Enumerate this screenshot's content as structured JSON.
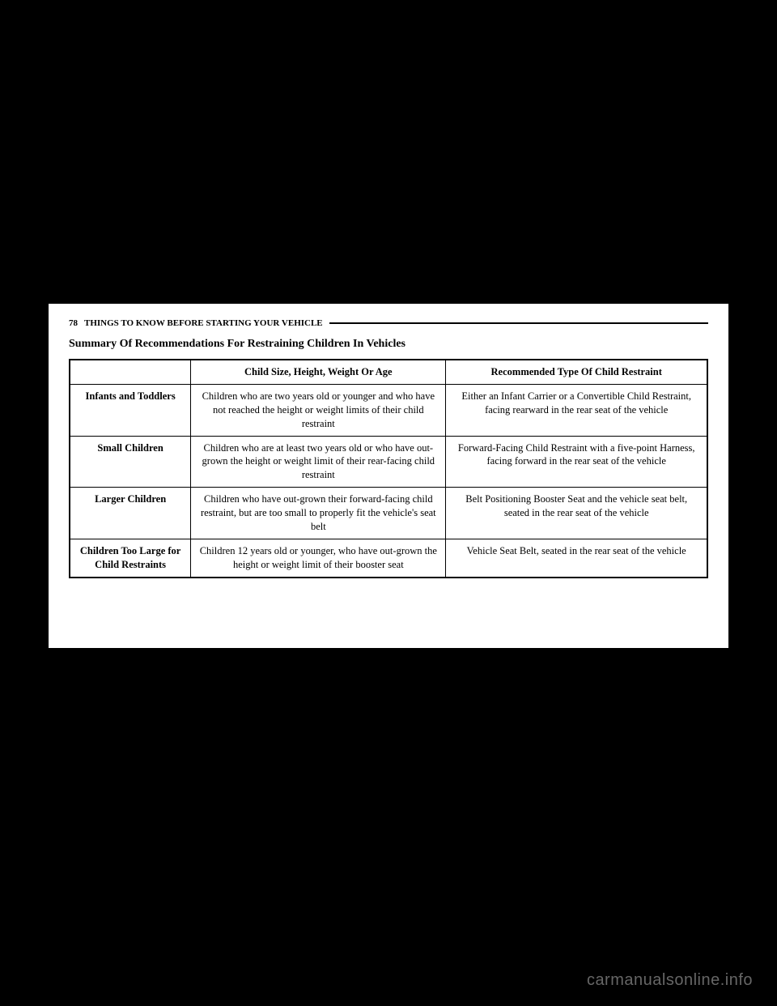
{
  "header": {
    "page_number": "78",
    "section_name": "THINGS TO KNOW BEFORE STARTING YOUR VEHICLE"
  },
  "table": {
    "heading": "Summary Of Recommendations For Restraining Children In Vehicles",
    "columns": [
      "",
      "Child Size, Height, Weight Or Age",
      "Recommended Type Of Child Restraint"
    ],
    "rows": [
      {
        "category": "Infants and Toddlers",
        "description": "Children who are two years old or younger and who have not reached the height or weight limits of their child restraint",
        "recommendation": "Either an Infant Carrier or a Convertible Child Restraint, facing rearward in the rear seat of the vehicle"
      },
      {
        "category": "Small Children",
        "description": "Children who are at least two years old or who have out-grown the height or weight limit of their rear-facing child restraint",
        "recommendation": "Forward-Facing Child Restraint with a five-point Harness, facing forward in the rear seat of the vehicle"
      },
      {
        "category": "Larger Children",
        "description": "Children who have out-grown their forward-facing child restraint, but are too small to properly fit the vehicle's seat belt",
        "recommendation": "Belt Positioning Booster Seat and the vehicle seat belt, seated in the rear seat of the vehicle"
      },
      {
        "category": "Children Too Large for Child Restraints",
        "description": "Children 12 years old or younger, who have out-grown the height or weight limit of their booster seat",
        "recommendation": "Vehicle Seat Belt, seated in the rear seat of the vehicle"
      }
    ]
  },
  "watermark": "carmanualsonline.info"
}
